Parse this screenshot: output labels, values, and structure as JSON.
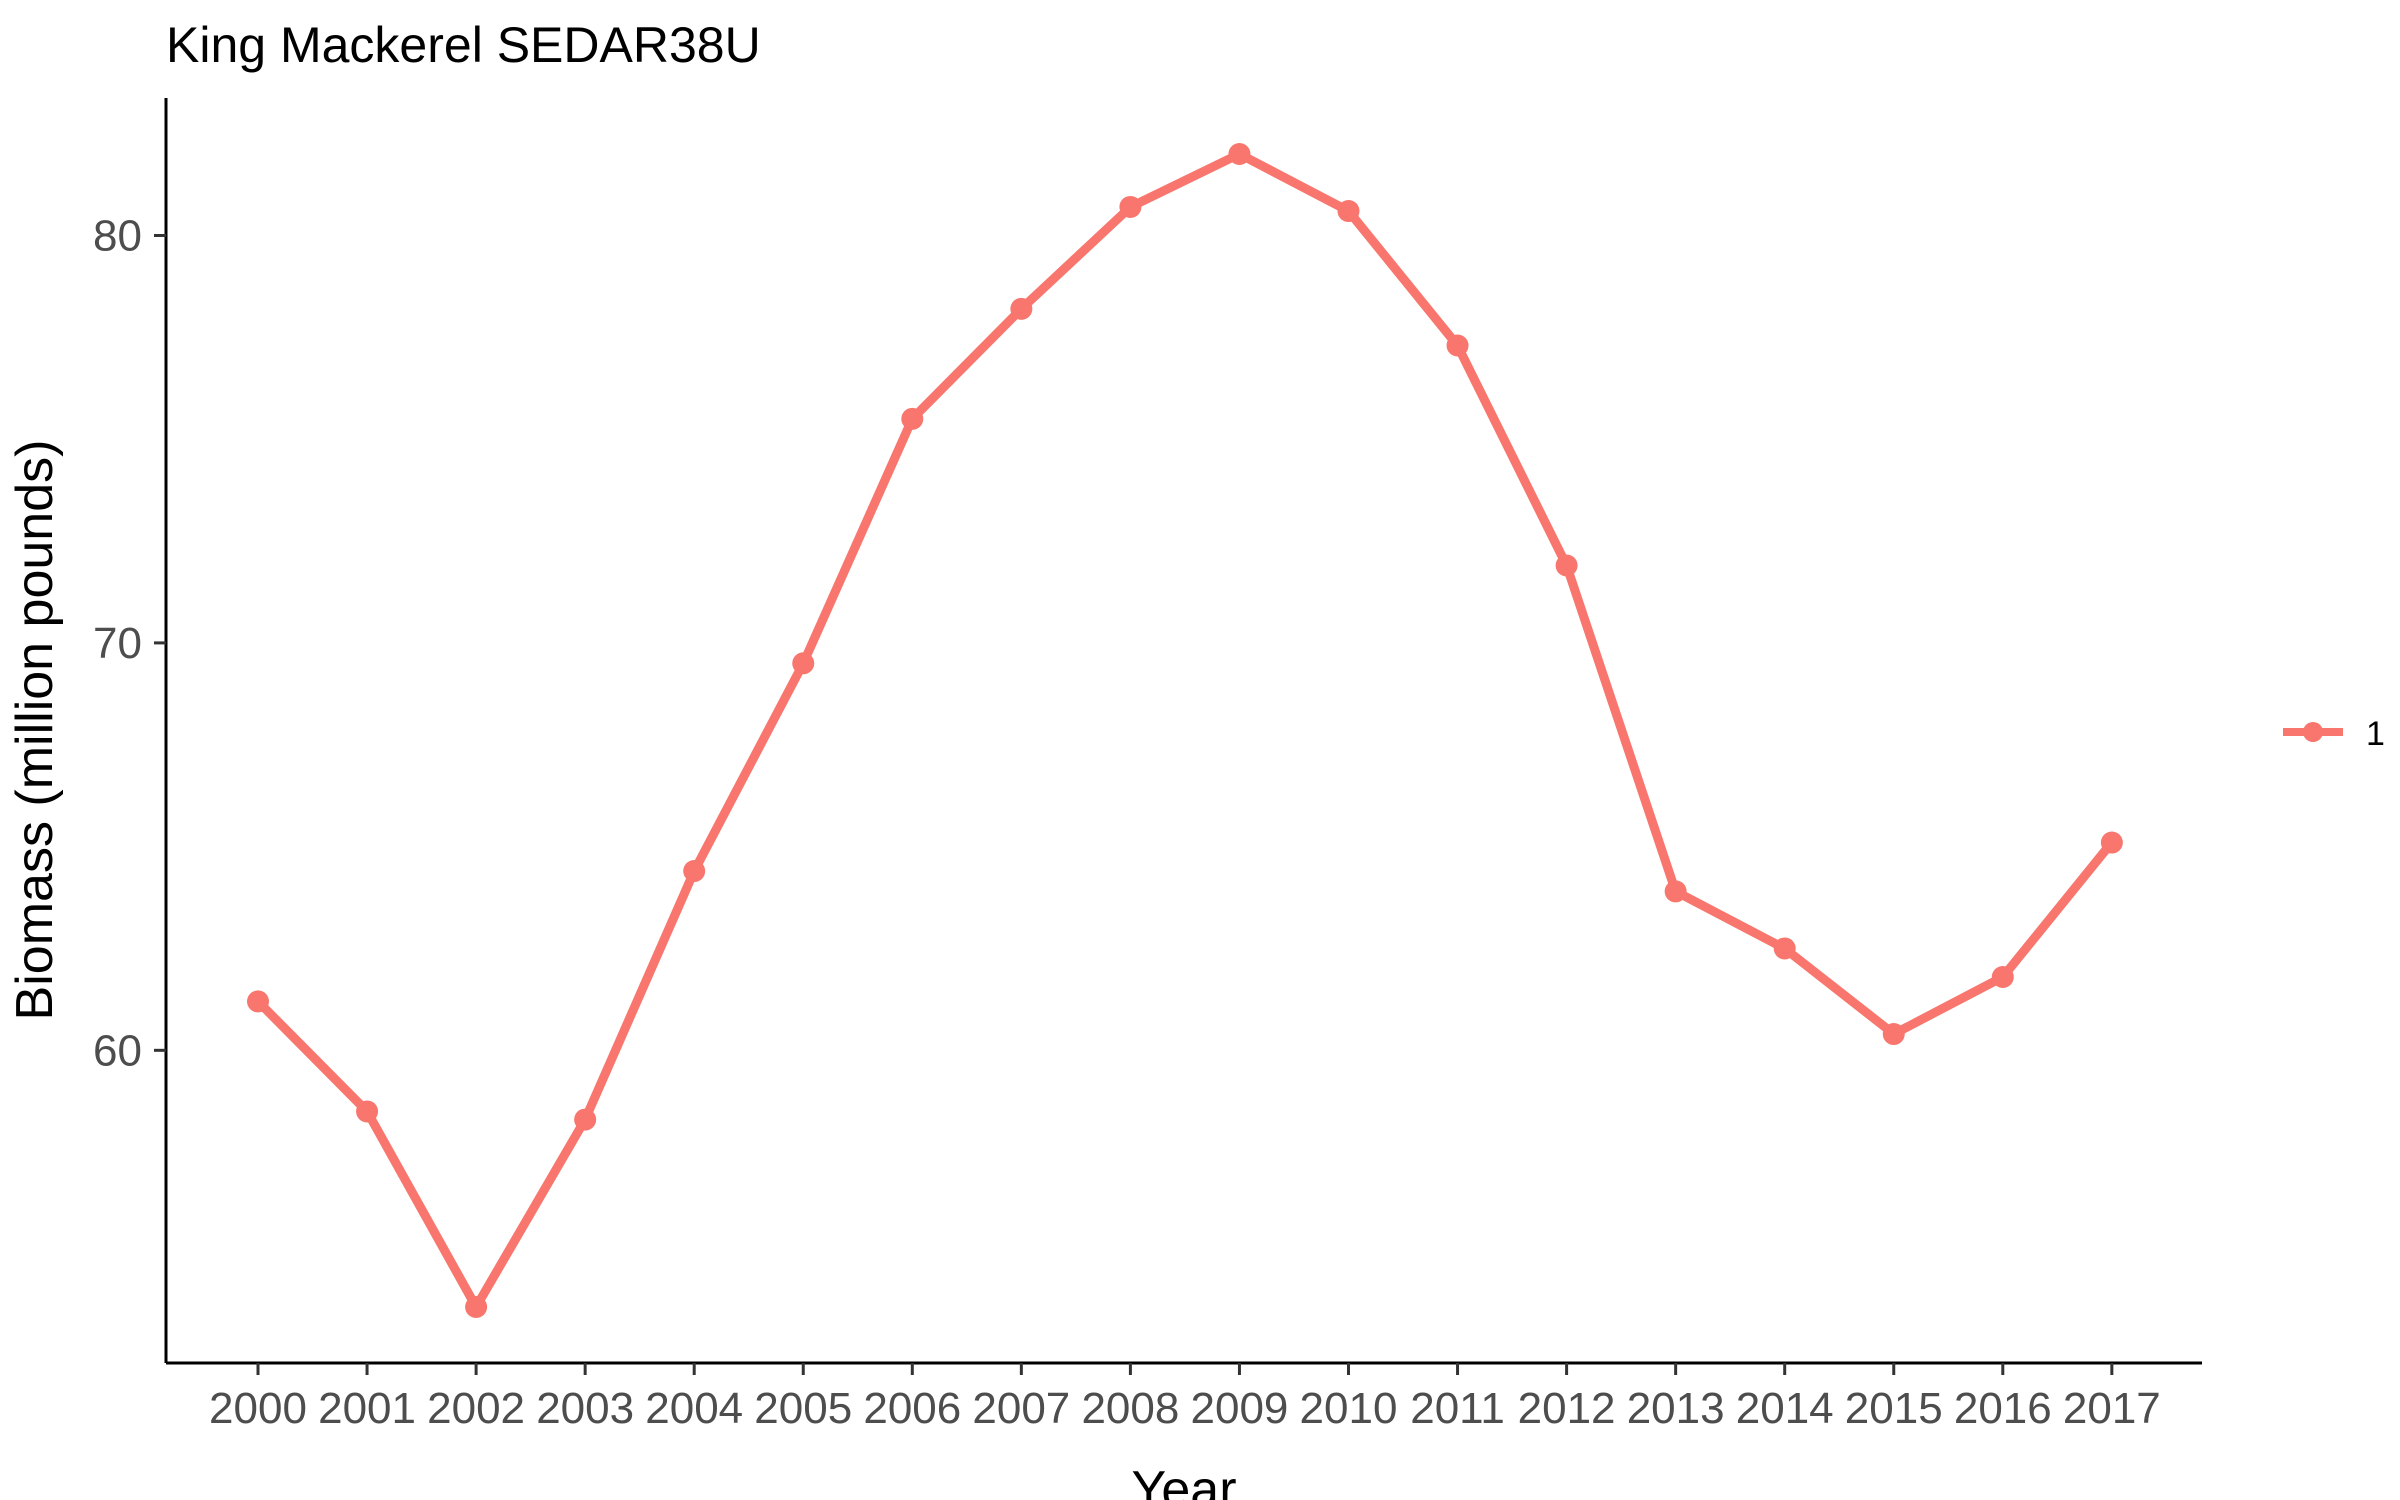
{
  "chart_data": {
    "type": "line",
    "title": "King Mackerel SEDAR38U",
    "xlabel": "Year",
    "ylabel": "Biomass (million pounds)",
    "categories": [
      "2000",
      "2001",
      "2002",
      "2003",
      "2004",
      "2005",
      "2006",
      "2007",
      "2008",
      "2009",
      "2010",
      "2011",
      "2012",
      "2013",
      "2014",
      "2015",
      "2016",
      "2017"
    ],
    "series": [
      {
        "name": "1",
        "color": "#f8766d",
        "values": [
          61.2,
          58.5,
          53.7,
          58.3,
          64.4,
          69.5,
          75.5,
          78.2,
          80.7,
          82.0,
          80.6,
          77.3,
          71.9,
          63.9,
          62.5,
          60.4,
          61.8,
          65.1
        ]
      }
    ],
    "ylim": [
      53.7,
      82.0
    ],
    "yticks": [
      60,
      70,
      80
    ],
    "grid": false,
    "legend": "right"
  }
}
